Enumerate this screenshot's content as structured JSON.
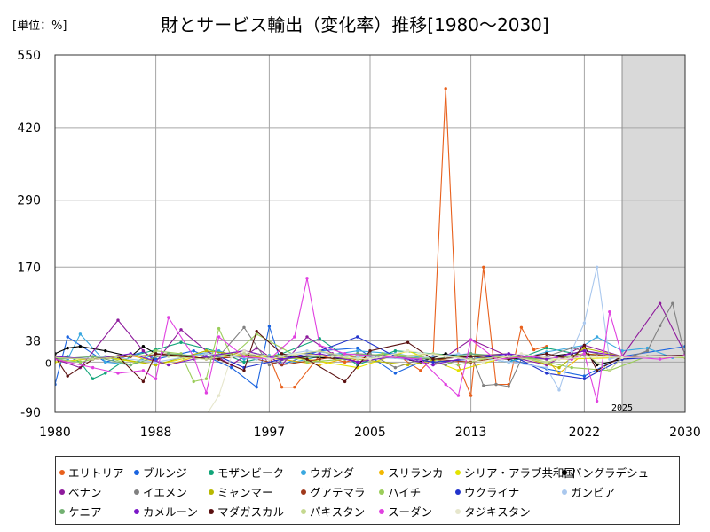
{
  "unit_label": "[単位：%]",
  "chart_data": {
    "type": "line",
    "title": "財とサービス輸出（変化率）推移[1980～2030]",
    "xlim": [
      1980,
      2030
    ],
    "ylim": [
      -90,
      550
    ],
    "x_ticks": [
      1980,
      1988,
      1997,
      2005,
      2013,
      2022,
      2030
    ],
    "y_ticks": [
      -90,
      0,
      38,
      170,
      290,
      420,
      550
    ],
    "grid": true,
    "forecast_start": 2025,
    "forecast_label": "2025",
    "legend_position": "bottom",
    "series": [
      {
        "name": "エリトリア",
        "color": "#e8601c",
        "x": [
          1993,
          1995,
          1997,
          1998,
          1999,
          2001,
          2003,
          2005,
          2007,
          2009,
          2010,
          2011,
          2012,
          2013,
          2014,
          2015,
          2016,
          2017,
          2018,
          2019
        ],
        "y": [
          5,
          20,
          10,
          -45,
          -45,
          12,
          0,
          10,
          15,
          -15,
          8,
          490,
          -5,
          -60,
          170,
          -40,
          -40,
          62,
          22,
          28
        ]
      },
      {
        "name": "ブルンジ",
        "color": "#1a64e0",
        "x": [
          1980,
          1981,
          1984,
          1987,
          1988,
          1991,
          1994,
          1996,
          1997,
          1998,
          2001,
          2004,
          2007,
          2010,
          2013,
          2016,
          2019,
          2022,
          2025,
          2030
        ],
        "y": [
          -40,
          45,
          0,
          18,
          5,
          20,
          -10,
          -45,
          64,
          -5,
          20,
          25,
          -20,
          10,
          15,
          5,
          -12,
          -25,
          10,
          28
        ]
      },
      {
        "name": "モザンビーク",
        "color": "#11a579",
        "x": [
          1980,
          1981,
          1982,
          1983,
          1984,
          1986,
          1988,
          1990,
          1993,
          1995,
          1998,
          2001,
          2004,
          2007,
          2010,
          2013,
          2016,
          2019,
          2022,
          2025,
          2030
        ],
        "y": [
          5,
          10,
          0,
          -30,
          -20,
          10,
          22,
          35,
          18,
          0,
          15,
          42,
          -5,
          20,
          15,
          10,
          0,
          25,
          12,
          8,
          12
        ]
      },
      {
        "name": "ウガンダ",
        "color": "#3aa8e0",
        "x": [
          1980,
          1981,
          1982,
          1984,
          1986,
          1988,
          1990,
          1993,
          1995,
          1997,
          1999,
          2001,
          2004,
          2007,
          2010,
          2013,
          2016,
          2019,
          2022,
          2023,
          2025,
          2027,
          2029,
          2030
        ],
        "y": [
          10,
          5,
          50,
          0,
          -5,
          15,
          10,
          20,
          5,
          12,
          0,
          10,
          20,
          15,
          5,
          10,
          0,
          18,
          30,
          45,
          20,
          25,
          8,
          12
        ]
      },
      {
        "name": "スリランカ",
        "color": "#f2b701",
        "x": [
          1980,
          1983,
          1986,
          1989,
          1992,
          1995,
          1998,
          2001,
          2004,
          2007,
          2010,
          2013,
          2016,
          2019,
          2020,
          2022,
          2025,
          2030
        ],
        "y": [
          8,
          5,
          12,
          -5,
          15,
          10,
          5,
          -5,
          12,
          10,
          15,
          5,
          8,
          5,
          -20,
          15,
          10,
          8
        ]
      },
      {
        "name": "シリア・アラブ共和国",
        "color": "#e3e300",
        "x": [
          1980,
          1984,
          1988,
          1992,
          1996,
          2000,
          2004,
          2008,
          2012,
          2016,
          2020,
          2025,
          2030
        ],
        "y": [
          0,
          8,
          -5,
          15,
          10,
          5,
          -10,
          20,
          -15,
          10,
          5,
          8,
          10
        ]
      },
      {
        "name": "バングラデシュ",
        "color": "#000000",
        "x": [
          1980,
          1981,
          1982,
          1984,
          1986,
          1987,
          1988,
          1990,
          1993,
          1995,
          1997,
          1999,
          2001,
          2003,
          2005,
          2007,
          2009,
          2011,
          2013,
          2015,
          2017,
          2019,
          2021,
          2022,
          2023,
          2025,
          2027,
          2030
        ],
        "y": [
          15,
          25,
          28,
          20,
          10,
          28,
          15,
          12,
          10,
          15,
          10,
          10,
          8,
          6,
          12,
          8,
          0,
          15,
          5,
          10,
          5,
          10,
          15,
          20,
          -5,
          5,
          10,
          12
        ]
      },
      {
        "name": "ベナン",
        "color": "#8e1a9c",
        "x": [
          1980,
          1982,
          1985,
          1987,
          1988,
          1990,
          1992,
          1994,
          1996,
          1998,
          2000,
          2002,
          2004,
          2006,
          2008,
          2010,
          2013,
          2016,
          2019,
          2022,
          2025,
          2028,
          2030
        ],
        "y": [
          5,
          -10,
          75,
          20,
          0,
          58,
          20,
          -5,
          25,
          -5,
          45,
          15,
          0,
          10,
          5,
          -5,
          40,
          10,
          -5,
          30,
          10,
          105,
          15
        ]
      },
      {
        "name": "イエメン",
        "color": "#808080",
        "x": [
          1991,
          1993,
          1995,
          1997,
          1999,
          2001,
          2003,
          2005,
          2007,
          2009,
          2011,
          2013,
          2014,
          2015,
          2016,
          2017,
          2019,
          2021,
          2023,
          2025,
          2026,
          2027,
          2028,
          2029,
          2030
        ],
        "y": [
          5,
          10,
          62,
          -5,
          10,
          20,
          5,
          15,
          -10,
          5,
          -5,
          15,
          -42,
          -40,
          -44,
          5,
          10,
          25,
          15,
          5,
          12,
          20,
          65,
          105,
          10
        ]
      },
      {
        "name": "ミャンマー",
        "color": "#b8b800",
        "x": [
          1980,
          1984,
          1988,
          1992,
          1996,
          2000,
          2004,
          2008,
          2012,
          2016,
          2020,
          2022,
          2025,
          2030
        ],
        "y": [
          5,
          10,
          -5,
          20,
          10,
          15,
          5,
          -5,
          10,
          15,
          -10,
          25,
          10,
          12
        ]
      },
      {
        "name": "グアテマラ",
        "color": "#a0391c",
        "x": [
          1980,
          1983,
          1986,
          1989,
          1992,
          1995,
          1998,
          2001,
          2004,
          2007,
          2010,
          2013,
          2016,
          2019,
          2022,
          2025,
          2030
        ],
        "y": [
          8,
          5,
          10,
          15,
          5,
          10,
          -5,
          5,
          15,
          10,
          5,
          0,
          10,
          5,
          15,
          8,
          10
        ]
      },
      {
        "name": "ハイチ",
        "color": "#9bcd5a",
        "x": [
          1980,
          1982,
          1984,
          1986,
          1988,
          1990,
          1991,
          1992,
          1993,
          1994,
          1996,
          1998,
          2000,
          2003,
          2006,
          2009,
          2012,
          2015,
          2018,
          2021,
          2024,
          2027,
          2030
        ],
        "y": [
          5,
          0,
          10,
          -5,
          20,
          15,
          -35,
          -30,
          60,
          10,
          50,
          25,
          0,
          5,
          15,
          10,
          -5,
          10,
          5,
          -10,
          -15,
          10,
          8
        ]
      },
      {
        "name": "ウクライナ",
        "color": "#2233cc",
        "x": [
          1993,
          1995,
          1998,
          2001,
          2004,
          2007,
          2010,
          2013,
          2016,
          2019,
          2022,
          2025,
          2030
        ],
        "y": [
          10,
          -10,
          5,
          20,
          45,
          10,
          0,
          5,
          15,
          -20,
          -30,
          5,
          12
        ]
      },
      {
        "name": "ガンビア",
        "color": "#aac8ee",
        "x": [
          1980,
          1984,
          1988,
          1992,
          1996,
          2000,
          2004,
          2008,
          2012,
          2016,
          2019,
          2020,
          2021,
          2022,
          2023,
          2024,
          2025,
          2030
        ],
        "y": [
          5,
          10,
          0,
          15,
          5,
          20,
          10,
          5,
          15,
          0,
          -10,
          -50,
          20,
          70,
          170,
          5,
          10,
          12
        ]
      },
      {
        "name": "ケニア",
        "color": "#72b071",
        "x": [
          1980,
          1983,
          1986,
          1989,
          1992,
          1995,
          1998,
          2001,
          2004,
          2007,
          2010,
          2013,
          2016,
          2019,
          2022,
          2025,
          2030
        ],
        "y": [
          5,
          10,
          -5,
          15,
          10,
          20,
          5,
          10,
          15,
          10,
          5,
          15,
          10,
          5,
          12,
          8,
          10
        ]
      },
      {
        "name": "カメルーン",
        "color": "#7b18c8",
        "x": [
          1980,
          1983,
          1986,
          1989,
          1992,
          1995,
          1998,
          2001,
          2004,
          2007,
          2010,
          2013,
          2016,
          2019,
          2022,
          2025,
          2030
        ],
        "y": [
          10,
          5,
          15,
          -5,
          10,
          20,
          5,
          15,
          0,
          10,
          -5,
          10,
          15,
          5,
          20,
          10,
          12
        ]
      },
      {
        "name": "マダガスカル",
        "color": "#5a1010",
        "x": [
          1980,
          1981,
          1983,
          1985,
          1987,
          1988,
          1990,
          1993,
          1995,
          1996,
          1998,
          2000,
          2003,
          2005,
          2008,
          2010,
          2013,
          2016,
          2019,
          2021,
          2022,
          2023,
          2025,
          2030
        ],
        "y": [
          10,
          -25,
          5,
          10,
          -35,
          15,
          10,
          5,
          -15,
          55,
          15,
          5,
          -35,
          20,
          35,
          5,
          10,
          5,
          15,
          5,
          30,
          -15,
          10,
          12
        ]
      },
      {
        "name": "パキスタン",
        "color": "#c5d88f",
        "x": [
          1980,
          1983,
          1986,
          1989,
          1992,
          1995,
          1998,
          2001,
          2004,
          2007,
          2010,
          2013,
          2016,
          2019,
          2022,
          2024,
          2025,
          2030
        ],
        "y": [
          8,
          5,
          12,
          10,
          5,
          15,
          10,
          20,
          5,
          10,
          15,
          5,
          10,
          0,
          15,
          -15,
          8,
          10
        ]
      },
      {
        "name": "スーダン",
        "color": "#e040e0",
        "x": [
          1980,
          1983,
          1985,
          1987,
          1988,
          1989,
          1991,
          1992,
          1993,
          1995,
          1997,
          1999,
          2000,
          2001,
          2003,
          2006,
          2009,
          2011,
          2012,
          2013,
          2015,
          2018,
          2021,
          2022,
          2023,
          2024,
          2025,
          2028,
          2030
        ],
        "y": [
          5,
          -10,
          -20,
          -15,
          -30,
          80,
          10,
          -55,
          45,
          10,
          5,
          45,
          150,
          30,
          15,
          10,
          5,
          -40,
          -60,
          40,
          5,
          10,
          5,
          15,
          -70,
          90,
          10,
          5,
          12
        ]
      },
      {
        "name": "タジキスタン",
        "color": "#e6e6cc",
        "x": [
          1992,
          1993,
          1994,
          1995,
          1997,
          1999,
          2002,
          2005,
          2008,
          2011,
          2014,
          2017,
          2020,
          2023,
          2025,
          2030
        ],
        "y": [
          -95,
          -60,
          10,
          20,
          5,
          15,
          10,
          5,
          20,
          10,
          0,
          15,
          5,
          10,
          8,
          10
        ]
      }
    ]
  }
}
